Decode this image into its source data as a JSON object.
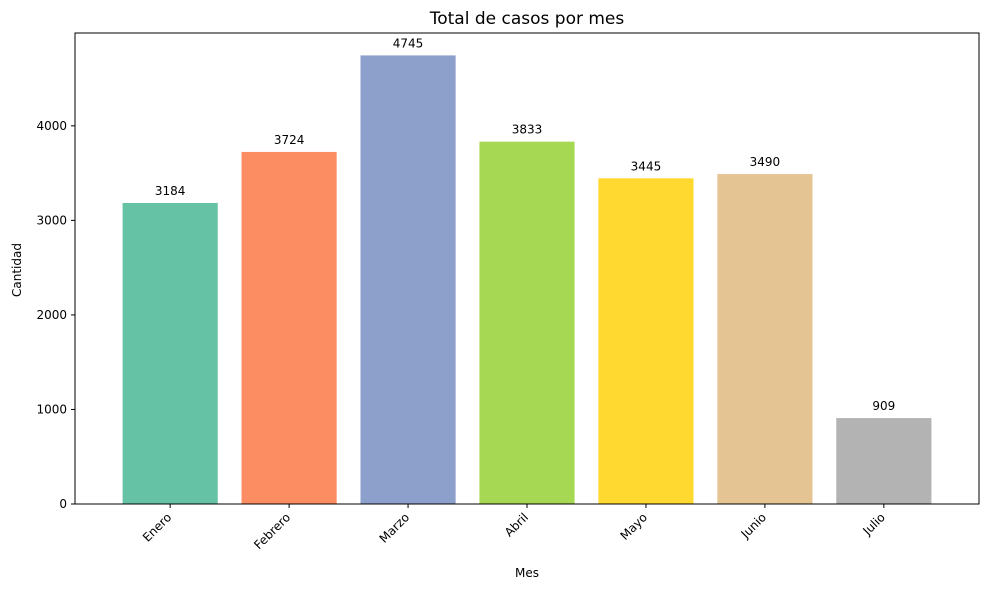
{
  "chart_data": {
    "type": "bar",
    "title": "Total de casos por mes",
    "xlabel": "Mes",
    "ylabel": "Cantidad",
    "categories": [
      "Enero",
      "Febrero",
      "Marzo",
      "Abril",
      "Mayo",
      "Junio",
      "Julio"
    ],
    "values": [
      3184,
      3724,
      4745,
      3833,
      3445,
      3490,
      909
    ],
    "colors": [
      "#66c2a5",
      "#fc8d62",
      "#8da0cb",
      "#a6d854",
      "#ffd92f",
      "#e5c494",
      "#b3b3b3"
    ],
    "ylim": [
      0,
      4982
    ],
    "yticks": [
      0,
      1000,
      2000,
      3000,
      4000
    ],
    "grid": false,
    "legend": false
  }
}
